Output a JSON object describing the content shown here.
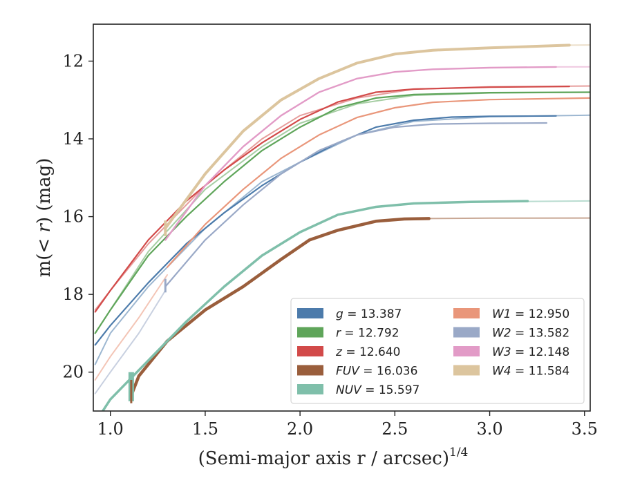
{
  "chart_data": {
    "type": "line",
    "xlabel": "(Semi-major axis r / arcsec)",
    "xlabel_exponent": "1/4",
    "ylabel_prefix": "m(",
    "ylabel_math": "< r",
    "ylabel_suffix": ") (mag)",
    "xlim": [
      0.91,
      3.53
    ],
    "ylim": [
      21.0,
      11.05
    ],
    "y_inverted": true,
    "xticks": [
      1.0,
      1.5,
      2.0,
      2.5,
      3.0,
      3.5
    ],
    "xtick_labels": [
      "1.0",
      "1.5",
      "2.0",
      "2.5",
      "3.0",
      "3.5"
    ],
    "yticks": [
      12,
      14,
      16,
      18,
      20
    ],
    "ytick_labels": [
      "12",
      "14",
      "16",
      "18",
      "20"
    ],
    "grid": false,
    "legend_placement": "lower-right",
    "legend_columns": 2,
    "series": [
      {
        "band": "g",
        "value": "13.387",
        "color": "#4c7bab",
        "faint": [
          [
            0.92,
            19.8
          ],
          [
            1.0,
            19.0
          ],
          [
            1.2,
            17.8
          ],
          [
            1.5,
            16.3
          ],
          [
            1.8,
            15.1
          ],
          [
            2.0,
            14.6
          ],
          [
            2.3,
            13.9
          ],
          [
            2.6,
            13.55
          ],
          [
            3.0,
            13.43
          ],
          [
            3.53,
            13.39
          ]
        ],
        "bold": [
          [
            0.92,
            19.3
          ],
          [
            1.0,
            18.8
          ],
          [
            1.2,
            17.7
          ],
          [
            1.4,
            16.7
          ],
          [
            1.6,
            15.9
          ],
          [
            1.8,
            15.2
          ],
          [
            2.0,
            14.6
          ],
          [
            2.2,
            14.1
          ],
          [
            2.4,
            13.7
          ],
          [
            2.6,
            13.52
          ],
          [
            2.8,
            13.44
          ],
          [
            3.0,
            13.42
          ],
          [
            3.35,
            13.41
          ]
        ],
        "bold_width": 2.2
      },
      {
        "band": "r",
        "value": "12.792",
        "color": "#5fa55a",
        "faint": [
          [
            0.92,
            19.0
          ],
          [
            1.0,
            18.4
          ],
          [
            1.2,
            16.9
          ],
          [
            1.5,
            15.3
          ],
          [
            1.8,
            14.2
          ],
          [
            2.0,
            13.6
          ],
          [
            2.3,
            13.1
          ],
          [
            2.6,
            12.88
          ],
          [
            3.0,
            12.82
          ],
          [
            3.53,
            12.8
          ]
        ],
        "bold": [
          [
            0.92,
            19.0
          ],
          [
            1.0,
            18.4
          ],
          [
            1.2,
            17.0
          ],
          [
            1.4,
            16.0
          ],
          [
            1.6,
            15.1
          ],
          [
            1.8,
            14.3
          ],
          [
            2.0,
            13.7
          ],
          [
            2.2,
            13.2
          ],
          [
            2.4,
            12.95
          ],
          [
            2.6,
            12.86
          ],
          [
            3.0,
            12.81
          ],
          [
            3.53,
            12.8
          ]
        ],
        "bold_width": 2.2
      },
      {
        "band": "z",
        "value": "12.640",
        "color": "#d24a49",
        "faint": [
          [
            0.92,
            18.4
          ],
          [
            1.0,
            17.9
          ],
          [
            1.2,
            16.7
          ],
          [
            1.5,
            15.2
          ],
          [
            1.8,
            14.0
          ],
          [
            2.0,
            13.4
          ],
          [
            2.3,
            12.95
          ],
          [
            2.6,
            12.72
          ],
          [
            3.0,
            12.66
          ],
          [
            3.53,
            12.64
          ]
        ],
        "bold": [
          [
            0.92,
            18.45
          ],
          [
            1.0,
            17.9
          ],
          [
            1.2,
            16.6
          ],
          [
            1.4,
            15.6
          ],
          [
            1.6,
            14.8
          ],
          [
            1.8,
            14.1
          ],
          [
            2.0,
            13.5
          ],
          [
            2.2,
            13.05
          ],
          [
            2.4,
            12.8
          ],
          [
            2.6,
            12.72
          ],
          [
            3.0,
            12.67
          ],
          [
            3.42,
            12.65
          ]
        ],
        "bold_width": 2.2
      },
      {
        "band": "FUV",
        "value": "16.036",
        "color": "#9a5e3c",
        "faint": [
          [
            2.65,
            16.05
          ],
          [
            3.0,
            16.04
          ],
          [
            3.53,
            16.036
          ]
        ],
        "bold": [
          [
            1.11,
            20.6
          ],
          [
            1.15,
            20.1
          ],
          [
            1.3,
            19.2
          ],
          [
            1.5,
            18.4
          ],
          [
            1.7,
            17.8
          ],
          [
            1.9,
            17.1
          ],
          [
            2.05,
            16.6
          ],
          [
            2.2,
            16.35
          ],
          [
            2.4,
            16.12
          ],
          [
            2.55,
            16.06
          ],
          [
            2.68,
            16.05
          ]
        ],
        "bold_width": 4.5
      },
      {
        "band": "NUV",
        "value": "15.597",
        "color": "#7fbfaa",
        "faint": [
          [
            3.2,
            15.61
          ],
          [
            3.53,
            15.597
          ]
        ],
        "bold": [
          [
            0.96,
            21.0
          ],
          [
            1.0,
            20.7
          ],
          [
            1.2,
            19.7
          ],
          [
            1.4,
            18.7
          ],
          [
            1.6,
            17.8
          ],
          [
            1.8,
            17.0
          ],
          [
            2.0,
            16.4
          ],
          [
            2.2,
            15.95
          ],
          [
            2.4,
            15.75
          ],
          [
            2.6,
            15.66
          ],
          [
            2.9,
            15.62
          ],
          [
            3.2,
            15.6
          ]
        ],
        "bold_width": 3.5
      },
      {
        "band": "W1",
        "value": "12.950",
        "color": "#e9967a",
        "faint": [
          [
            0.92,
            20.2
          ],
          [
            1.0,
            19.6
          ],
          [
            1.15,
            18.6
          ],
          [
            1.3,
            17.5
          ]
        ],
        "bold": [
          [
            1.3,
            17.3
          ],
          [
            1.5,
            16.2
          ],
          [
            1.7,
            15.3
          ],
          [
            1.9,
            14.5
          ],
          [
            2.1,
            13.9
          ],
          [
            2.3,
            13.45
          ],
          [
            2.5,
            13.2
          ],
          [
            2.7,
            13.06
          ],
          [
            3.0,
            12.99
          ],
          [
            3.53,
            12.95
          ]
        ],
        "bold_width": 2.2
      },
      {
        "band": "W2",
        "value": "13.582",
        "color": "#9aa9c7",
        "faint": [
          [
            0.92,
            20.55
          ],
          [
            1.0,
            20.0
          ],
          [
            1.15,
            19.0
          ],
          [
            1.29,
            17.9
          ]
        ],
        "bold": [
          [
            1.29,
            17.8
          ],
          [
            1.5,
            16.6
          ],
          [
            1.7,
            15.7
          ],
          [
            1.9,
            14.9
          ],
          [
            2.1,
            14.3
          ],
          [
            2.3,
            13.9
          ],
          [
            2.5,
            13.7
          ],
          [
            2.7,
            13.62
          ],
          [
            3.0,
            13.6
          ],
          [
            3.3,
            13.59
          ]
        ],
        "bold_width": 2.2
      },
      {
        "band": "W3",
        "value": "12.148",
        "color": "#e29bc7",
        "faint": [
          [
            3.35,
            12.15
          ],
          [
            3.53,
            12.148
          ]
        ],
        "bold": [
          [
            1.29,
            16.6
          ],
          [
            1.5,
            15.2
          ],
          [
            1.7,
            14.2
          ],
          [
            1.9,
            13.4
          ],
          [
            2.1,
            12.8
          ],
          [
            2.3,
            12.45
          ],
          [
            2.5,
            12.28
          ],
          [
            2.7,
            12.21
          ],
          [
            3.0,
            12.17
          ],
          [
            3.35,
            12.15
          ]
        ],
        "bold_width": 2.4
      },
      {
        "band": "W4",
        "value": "11.584",
        "color": "#dcc59e",
        "faint": [
          [
            3.42,
            11.59
          ],
          [
            3.53,
            11.584
          ]
        ],
        "bold": [
          [
            1.29,
            16.3
          ],
          [
            1.5,
            14.9
          ],
          [
            1.7,
            13.8
          ],
          [
            1.9,
            13.0
          ],
          [
            2.1,
            12.45
          ],
          [
            2.3,
            12.05
          ],
          [
            2.5,
            11.82
          ],
          [
            2.7,
            11.72
          ],
          [
            3.0,
            11.66
          ],
          [
            3.42,
            11.59
          ]
        ],
        "bold_width": 4.0
      }
    ],
    "errorbars": [
      {
        "band": "NUV",
        "x": 1.11,
        "ylow": 20.0,
        "yhigh": 20.75,
        "color": "#7fbfaa",
        "width": 8
      },
      {
        "band": "FUV",
        "x": 1.11,
        "ylow": 20.2,
        "yhigh": 20.8,
        "color": "#9a5e3c",
        "width": 3
      },
      {
        "band": "W2",
        "x": 1.29,
        "ylow": 17.6,
        "yhigh": 17.95,
        "color": "#9aa9c7",
        "width": 3
      },
      {
        "band": "W4",
        "x": 1.29,
        "ylow": 16.1,
        "yhigh": 16.5,
        "color": "#dcc59e",
        "width": 4
      }
    ]
  }
}
